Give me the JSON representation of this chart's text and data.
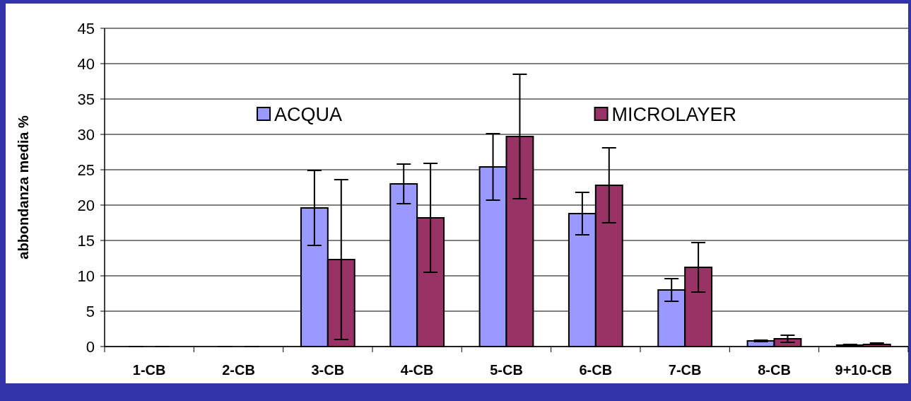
{
  "chart_data": {
    "type": "bar",
    "ylabel": "abbondanza media %",
    "categories": [
      "1-CB",
      "2-CB",
      "3-CB",
      "4-CB",
      "5-CB",
      "6-CB",
      "7-CB",
      "8-CB",
      "9+10-CB"
    ],
    "series": [
      {
        "name": "ACQUA",
        "color": "#9999ff",
        "values": [
          0,
          0,
          19.6,
          23.0,
          25.4,
          18.8,
          8.0,
          0.8,
          0.2
        ],
        "errors": [
          0,
          0,
          5.3,
          2.8,
          4.7,
          3.0,
          1.6,
          0.1,
          0.1
        ]
      },
      {
        "name": "MICROLAYER",
        "color": "#993366",
        "values": [
          0,
          0,
          12.3,
          18.2,
          29.7,
          22.8,
          11.2,
          1.1,
          0.3
        ],
        "errors": [
          0,
          0,
          11.3,
          7.7,
          8.8,
          5.3,
          3.5,
          0.5,
          [
            0.3,
            0.5
          ]
        ]
      }
    ],
    "ylim": [
      0,
      45
    ],
    "yticks": [
      0,
      5,
      10,
      15,
      20,
      25,
      30,
      35,
      40,
      45
    ],
    "grid": "y",
    "legend": "top"
  }
}
